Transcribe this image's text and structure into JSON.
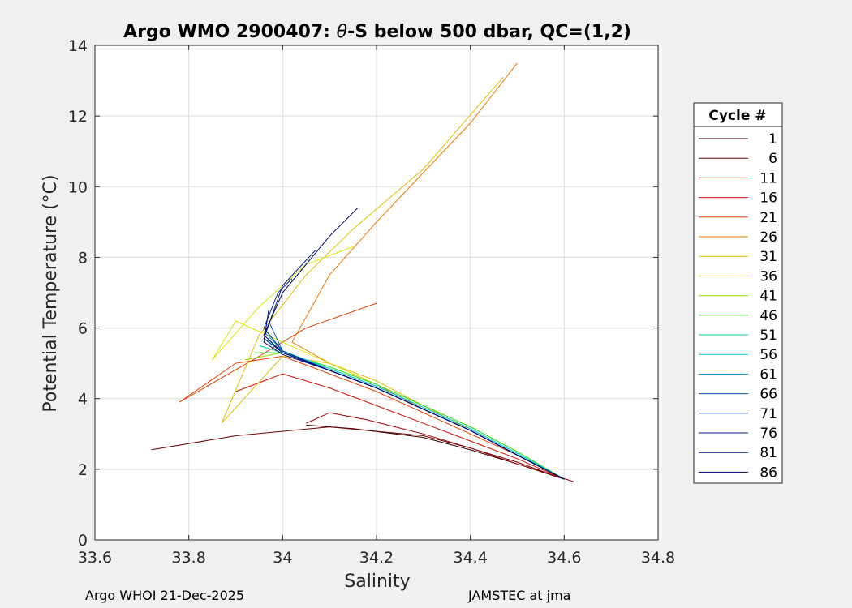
{
  "chart_data": {
    "type": "line",
    "title_prefix": "Argo WMO 2900407: ",
    "title_theta": "θ",
    "title_suffix": "-S below 500 dbar,  QC=(1,2)",
    "xlabel": "Salinity",
    "ylabel": "Potential Temperature (°C)",
    "xlim": [
      33.6,
      34.8
    ],
    "ylim": [
      0,
      14
    ],
    "xticks": [
      "33.6",
      "33.8",
      "34",
      "34.2",
      "34.4",
      "34.6",
      "34.8"
    ],
    "yticks": [
      "0",
      "2",
      "4",
      "6",
      "8",
      "10",
      "12",
      "14"
    ],
    "grid": true,
    "legend_title": "Cycle #",
    "legend_position": "right",
    "series": [
      {
        "name": "1",
        "color": "#360000",
        "x": [
          34.6,
          34.5,
          34.4,
          34.3,
          34.15,
          34.05
        ],
        "y": [
          1.72,
          2.15,
          2.55,
          2.9,
          3.15,
          3.25
        ]
      },
      {
        "name": "6",
        "color": "#6b0000",
        "x": [
          34.6,
          34.5,
          34.4,
          34.3,
          34.1,
          33.9,
          33.72
        ],
        "y": [
          1.72,
          2.2,
          2.6,
          2.95,
          3.2,
          2.95,
          2.55
        ]
      },
      {
        "name": "11",
        "color": "#a00000",
        "x": [
          34.62,
          34.5,
          34.4,
          34.3,
          34.18,
          34.1,
          34.05
        ],
        "y": [
          1.65,
          2.15,
          2.6,
          3.0,
          3.4,
          3.6,
          3.3
        ]
      },
      {
        "name": "16",
        "color": "#d61000",
        "x": [
          34.6,
          34.5,
          34.4,
          34.3,
          34.2,
          34.1,
          34.0,
          33.9
        ],
        "y": [
          1.72,
          2.3,
          2.8,
          3.3,
          3.8,
          4.3,
          4.7,
          4.2
        ]
      },
      {
        "name": "21",
        "color": "#e84000",
        "x": [
          34.6,
          34.5,
          34.4,
          34.3,
          34.2,
          34.1,
          34.0,
          33.9,
          33.78,
          33.95,
          34.05,
          34.2
        ],
        "y": [
          1.72,
          2.4,
          3.0,
          3.6,
          4.2,
          4.7,
          5.2,
          5.0,
          3.9,
          5.2,
          6.0,
          6.7
        ]
      },
      {
        "name": "26",
        "color": "#f07800",
        "x": [
          34.6,
          34.5,
          34.4,
          34.3,
          34.2,
          34.1,
          34.02,
          34.1,
          34.2,
          34.3,
          34.4,
          34.5
        ],
        "y": [
          1.72,
          2.4,
          3.1,
          3.7,
          4.4,
          5.0,
          5.6,
          7.5,
          9.0,
          10.4,
          11.8,
          13.5
        ]
      },
      {
        "name": "31",
        "color": "#e0c000",
        "x": [
          34.6,
          34.5,
          34.4,
          34.3,
          34.2,
          34.1,
          34.0,
          33.87,
          33.95,
          34.05,
          34.15,
          34.3,
          34.47
        ],
        "y": [
          1.72,
          2.4,
          3.1,
          3.8,
          4.5,
          5.0,
          5.2,
          3.3,
          5.8,
          7.5,
          8.8,
          10.5,
          13.1
        ]
      },
      {
        "name": "36",
        "color": "#d8e800",
        "x": [
          34.6,
          34.5,
          34.4,
          34.3,
          34.2,
          34.1,
          34.0,
          33.9,
          33.85,
          33.95,
          34.05,
          34.15
        ],
        "y": [
          1.72,
          2.5,
          3.2,
          3.8,
          4.4,
          5.0,
          5.6,
          6.2,
          5.1,
          6.6,
          7.8,
          8.3
        ]
      },
      {
        "name": "41",
        "color": "#90e000",
        "x": [
          34.6,
          34.5,
          34.4,
          34.3,
          34.2,
          34.1,
          34.0,
          33.92
        ],
        "y": [
          1.72,
          2.5,
          3.2,
          3.8,
          4.4,
          4.9,
          5.3,
          5.1
        ]
      },
      {
        "name": "46",
        "color": "#30e030",
        "x": [
          34.6,
          34.5,
          34.4,
          34.3,
          34.2,
          34.1,
          34.0,
          33.94
        ],
        "y": [
          1.72,
          2.5,
          3.2,
          3.8,
          4.4,
          4.9,
          5.3,
          5.3
        ]
      },
      {
        "name": "51",
        "color": "#00d090",
        "x": [
          34.6,
          34.5,
          34.4,
          34.3,
          34.2,
          34.1,
          34.0,
          33.95
        ],
        "y": [
          1.72,
          2.45,
          3.15,
          3.75,
          4.35,
          4.85,
          5.3,
          5.5
        ]
      },
      {
        "name": "56",
        "color": "#00c8e0",
        "x": [
          34.6,
          34.5,
          34.4,
          34.3,
          34.2,
          34.1,
          34.0,
          33.96
        ],
        "y": [
          1.72,
          2.45,
          3.15,
          3.75,
          4.35,
          4.85,
          5.35,
          5.7
        ]
      },
      {
        "name": "61",
        "color": "#0090c8",
        "x": [
          34.6,
          34.5,
          34.4,
          34.3,
          34.2,
          34.1,
          34.0,
          33.96
        ],
        "y": [
          1.72,
          2.4,
          3.1,
          3.7,
          4.3,
          4.8,
          5.35,
          5.9
        ]
      },
      {
        "name": "66",
        "color": "#0058b0",
        "x": [
          34.6,
          34.5,
          34.4,
          34.3,
          34.2,
          34.1,
          34.0,
          33.97
        ],
        "y": [
          1.72,
          2.4,
          3.1,
          3.7,
          4.3,
          4.8,
          5.35,
          6.2
        ]
      },
      {
        "name": "71",
        "color": "#0028a0",
        "x": [
          34.6,
          34.5,
          34.4,
          34.3,
          34.2,
          34.1,
          34.0,
          33.96,
          33.99,
          34.02
        ],
        "y": [
          1.72,
          2.4,
          3.1,
          3.7,
          4.3,
          4.8,
          5.35,
          6.0,
          7.0,
          7.4
        ]
      },
      {
        "name": "76",
        "color": "#001890",
        "x": [
          34.6,
          34.5,
          34.4,
          34.3,
          34.2,
          34.1,
          34.0,
          33.96,
          34.0,
          34.07
        ],
        "y": [
          1.72,
          2.4,
          3.1,
          3.7,
          4.3,
          4.8,
          5.3,
          5.7,
          7.2,
          8.2
        ]
      },
      {
        "name": "81",
        "color": "#000c80",
        "x": [
          34.6,
          34.5,
          34.4,
          34.3,
          34.2,
          34.1,
          34.0,
          33.96,
          33.97
        ],
        "y": [
          1.72,
          2.4,
          3.1,
          3.7,
          4.3,
          4.8,
          5.25,
          5.6,
          6.5
        ]
      },
      {
        "name": "86",
        "color": "#000070",
        "x": [
          34.6,
          34.5,
          34.4,
          34.3,
          34.2,
          34.1,
          34.0,
          33.96,
          34.0,
          34.1,
          34.16
        ],
        "y": [
          1.72,
          2.4,
          3.1,
          3.7,
          4.3,
          4.8,
          5.3,
          5.8,
          7.0,
          8.6,
          9.4
        ]
      }
    ]
  },
  "footer": {
    "left": "Argo WHOI 21-Dec-2025",
    "right": "JAMSTEC at jma"
  }
}
